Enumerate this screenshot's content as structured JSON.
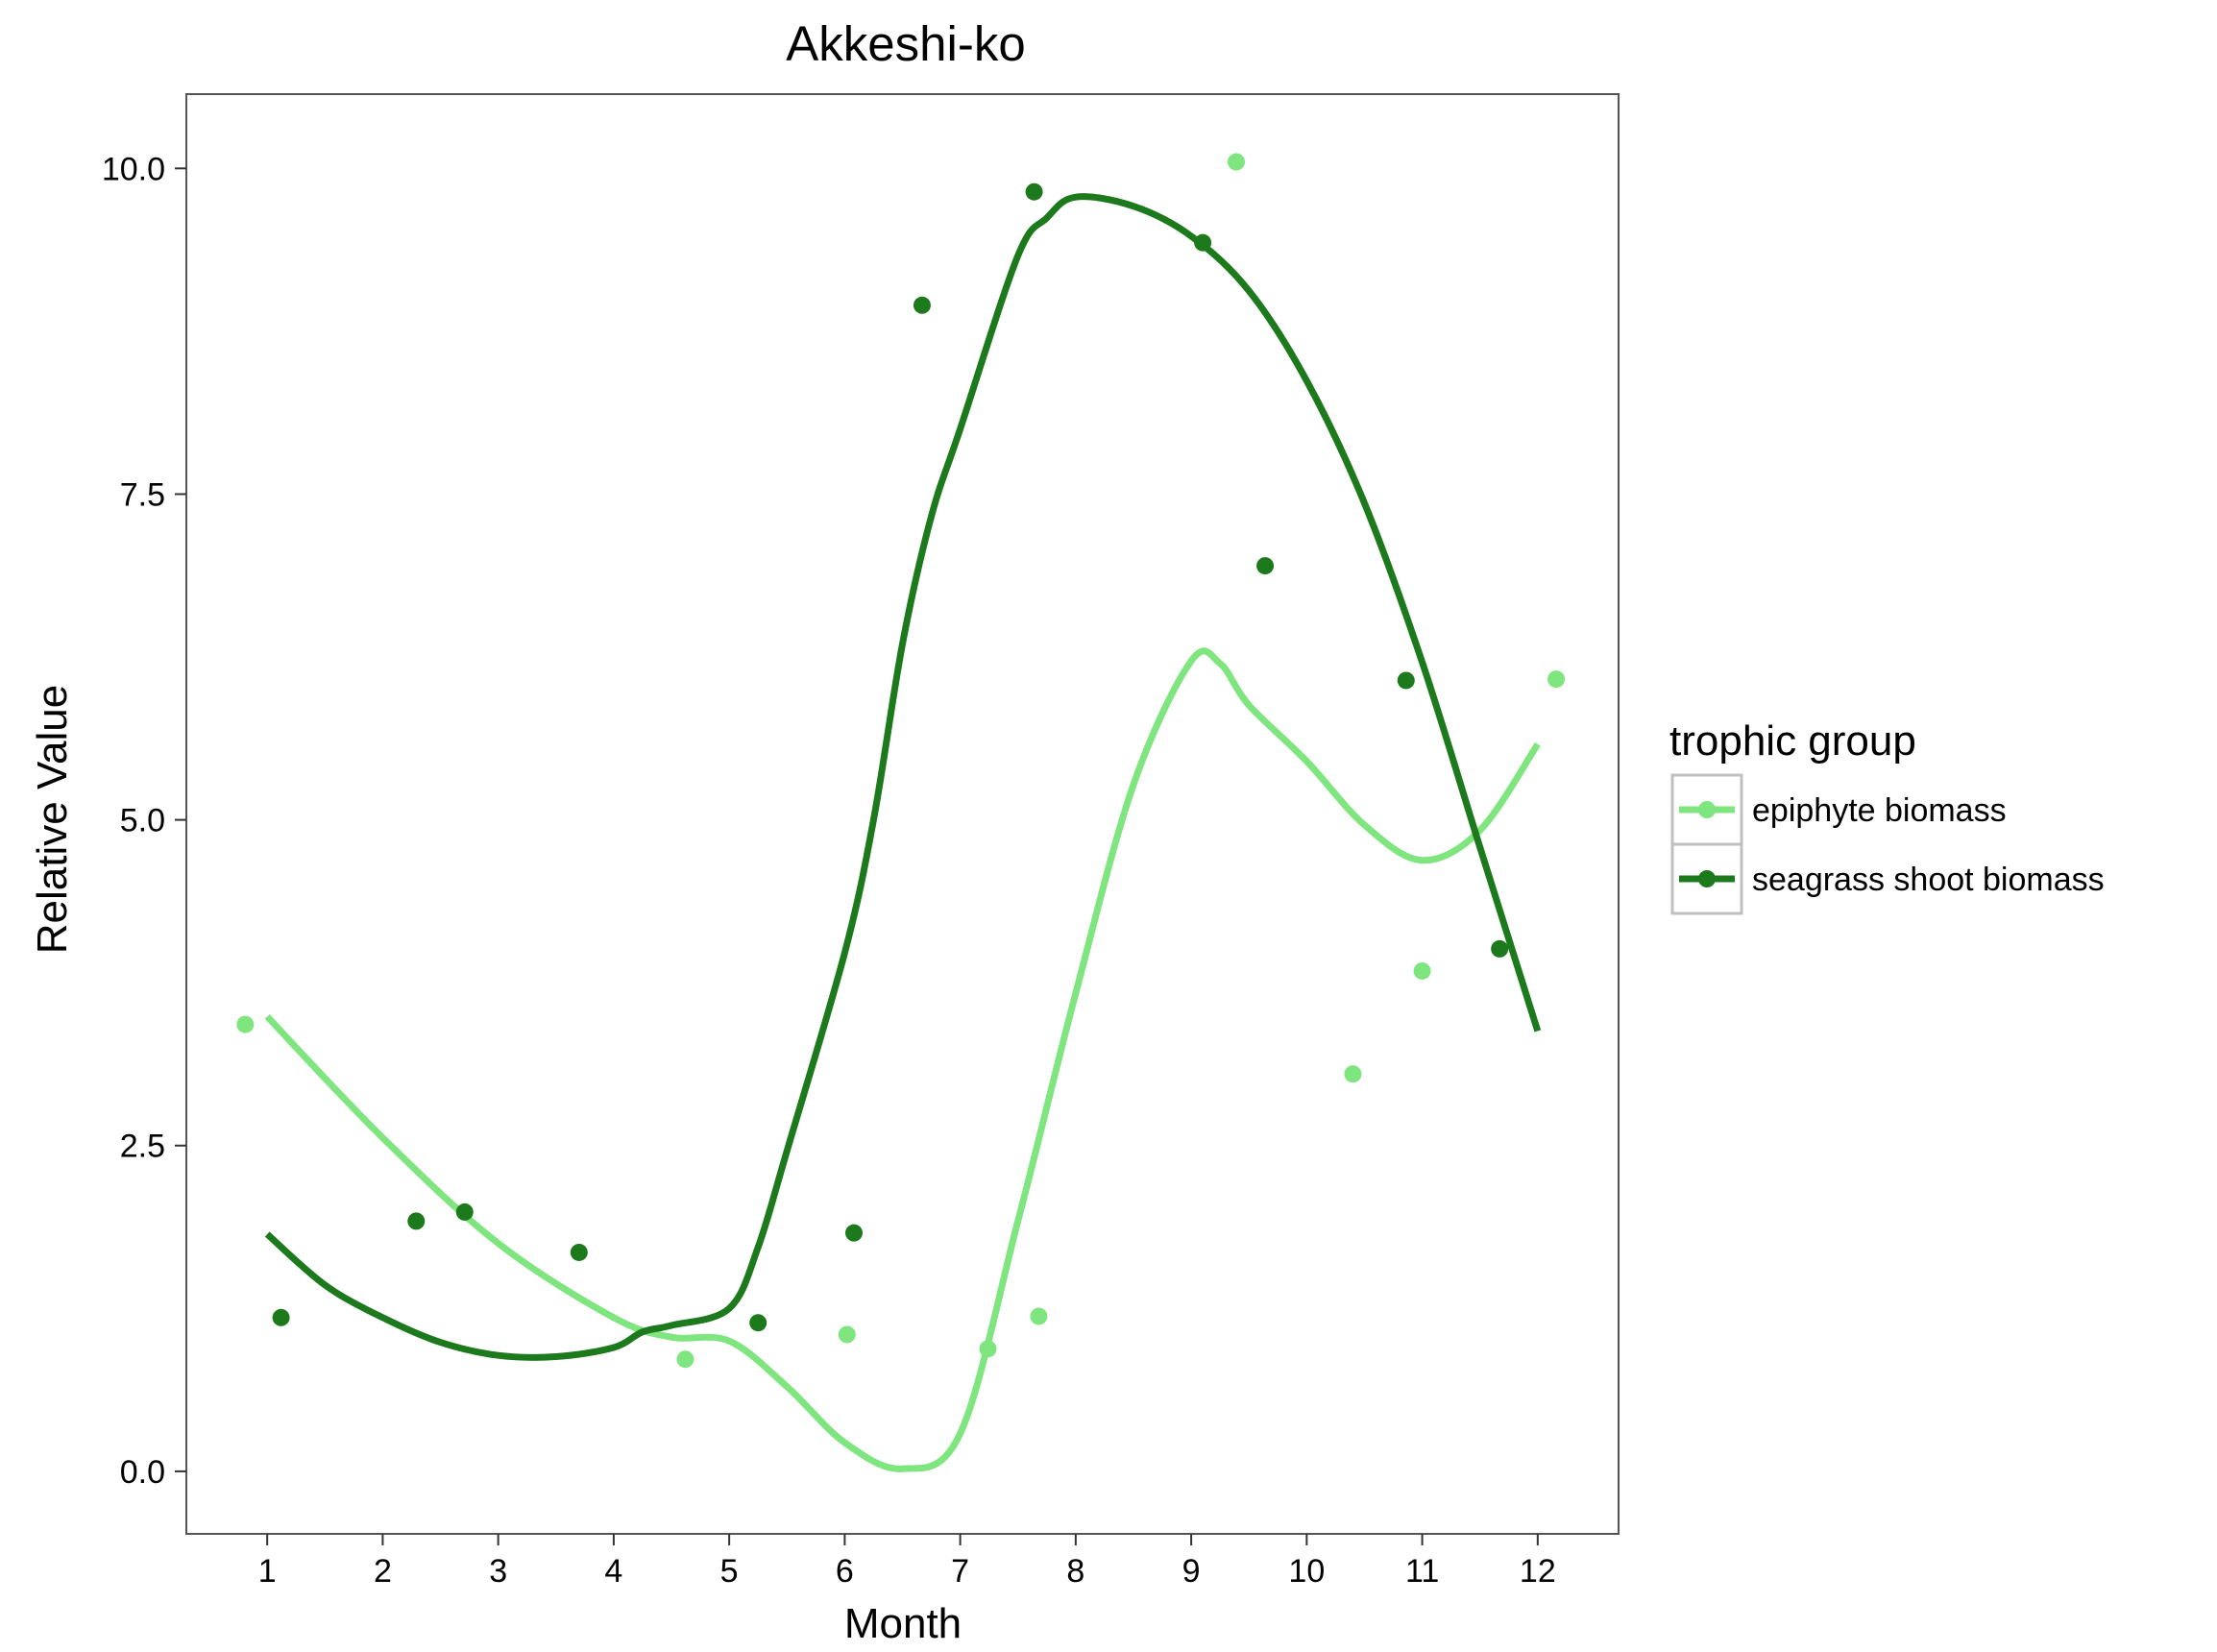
{
  "chart_data": {
    "type": "scatter",
    "title": "Akkeshi-ko",
    "xlabel": "Month",
    "ylabel": "Relative Value",
    "xlim": [
      0.3,
      12.7
    ],
    "ylim": [
      -0.48,
      10.57
    ],
    "x_ticks": [
      1,
      2,
      3,
      4,
      5,
      6,
      7,
      8,
      9,
      10,
      11,
      12
    ],
    "y_ticks": [
      0.0,
      2.5,
      5.0,
      7.5,
      10.0
    ],
    "y_tick_labels": [
      "0.0",
      "2.5",
      "5.0",
      "7.5",
      "10.0"
    ],
    "grid": false,
    "panel_border": true,
    "legend": {
      "title": "trophic group",
      "placement": "right",
      "entries": [
        "epiphyte biomass",
        "seagrass shoot biomass"
      ]
    },
    "series": [
      {
        "name": "epiphyte biomass",
        "color": "#7fe57f",
        "points": [
          {
            "x": 0.81,
            "y": 3.43
          },
          {
            "x": 4.62,
            "y": 0.86
          },
          {
            "x": 6.02,
            "y": 1.05
          },
          {
            "x": 7.24,
            "y": 0.94
          },
          {
            "x": 7.68,
            "y": 1.19
          },
          {
            "x": 9.39,
            "y": 10.05
          },
          {
            "x": 10.4,
            "y": 3.05
          },
          {
            "x": 11.0,
            "y": 3.84
          },
          {
            "x": 12.16,
            "y": 6.08
          }
        ],
        "smooth": [
          [
            1.0,
            3.49
          ],
          [
            2.0,
            2.56
          ],
          [
            3.0,
            1.75
          ],
          [
            4.0,
            1.18
          ],
          [
            4.5,
            1.03
          ],
          [
            5.0,
            1.0
          ],
          [
            5.5,
            0.65
          ],
          [
            6.0,
            0.22
          ],
          [
            6.5,
            0.02
          ],
          [
            7.0,
            0.29
          ],
          [
            7.5,
            1.92
          ],
          [
            8.0,
            3.67
          ],
          [
            8.5,
            5.27
          ],
          [
            9.0,
            6.22
          ],
          [
            9.25,
            6.2
          ],
          [
            9.5,
            5.88
          ],
          [
            10.0,
            5.45
          ],
          [
            10.5,
            4.96
          ],
          [
            11.0,
            4.69
          ],
          [
            11.5,
            4.92
          ],
          [
            12.0,
            5.58
          ]
        ]
      },
      {
        "name": "seagrass shoot biomass",
        "color": "#1c7a1c",
        "points": [
          {
            "x": 1.12,
            "y": 1.18
          },
          {
            "x": 2.29,
            "y": 1.92
          },
          {
            "x": 2.71,
            "y": 1.99
          },
          {
            "x": 3.7,
            "y": 1.68
          },
          {
            "x": 5.25,
            "y": 1.14
          },
          {
            "x": 6.08,
            "y": 1.83
          },
          {
            "x": 6.67,
            "y": 8.95
          },
          {
            "x": 7.64,
            "y": 9.82
          },
          {
            "x": 9.1,
            "y": 9.43
          },
          {
            "x": 9.64,
            "y": 6.95
          },
          {
            "x": 10.86,
            "y": 6.07
          },
          {
            "x": 11.67,
            "y": 4.01
          }
        ],
        "smooth": [
          [
            1.0,
            1.82
          ],
          [
            1.5,
            1.43
          ],
          [
            2.0,
            1.18
          ],
          [
            2.5,
            0.99
          ],
          [
            3.0,
            0.89
          ],
          [
            3.5,
            0.88
          ],
          [
            4.0,
            0.95
          ],
          [
            4.25,
            1.07
          ],
          [
            4.5,
            1.12
          ],
          [
            5.0,
            1.25
          ],
          [
            5.25,
            1.72
          ],
          [
            5.5,
            2.46
          ],
          [
            6.0,
            3.98
          ],
          [
            6.25,
            5.0
          ],
          [
            6.5,
            6.35
          ],
          [
            6.75,
            7.33
          ],
          [
            7.0,
            8.0
          ],
          [
            7.5,
            9.33
          ],
          [
            7.75,
            9.62
          ],
          [
            8.0,
            9.78
          ],
          [
            8.5,
            9.71
          ],
          [
            9.0,
            9.48
          ],
          [
            9.5,
            9.06
          ],
          [
            10.0,
            8.37
          ],
          [
            10.5,
            7.43
          ],
          [
            11.0,
            6.21
          ],
          [
            11.5,
            4.79
          ],
          [
            12.0,
            3.38
          ]
        ]
      }
    ]
  }
}
